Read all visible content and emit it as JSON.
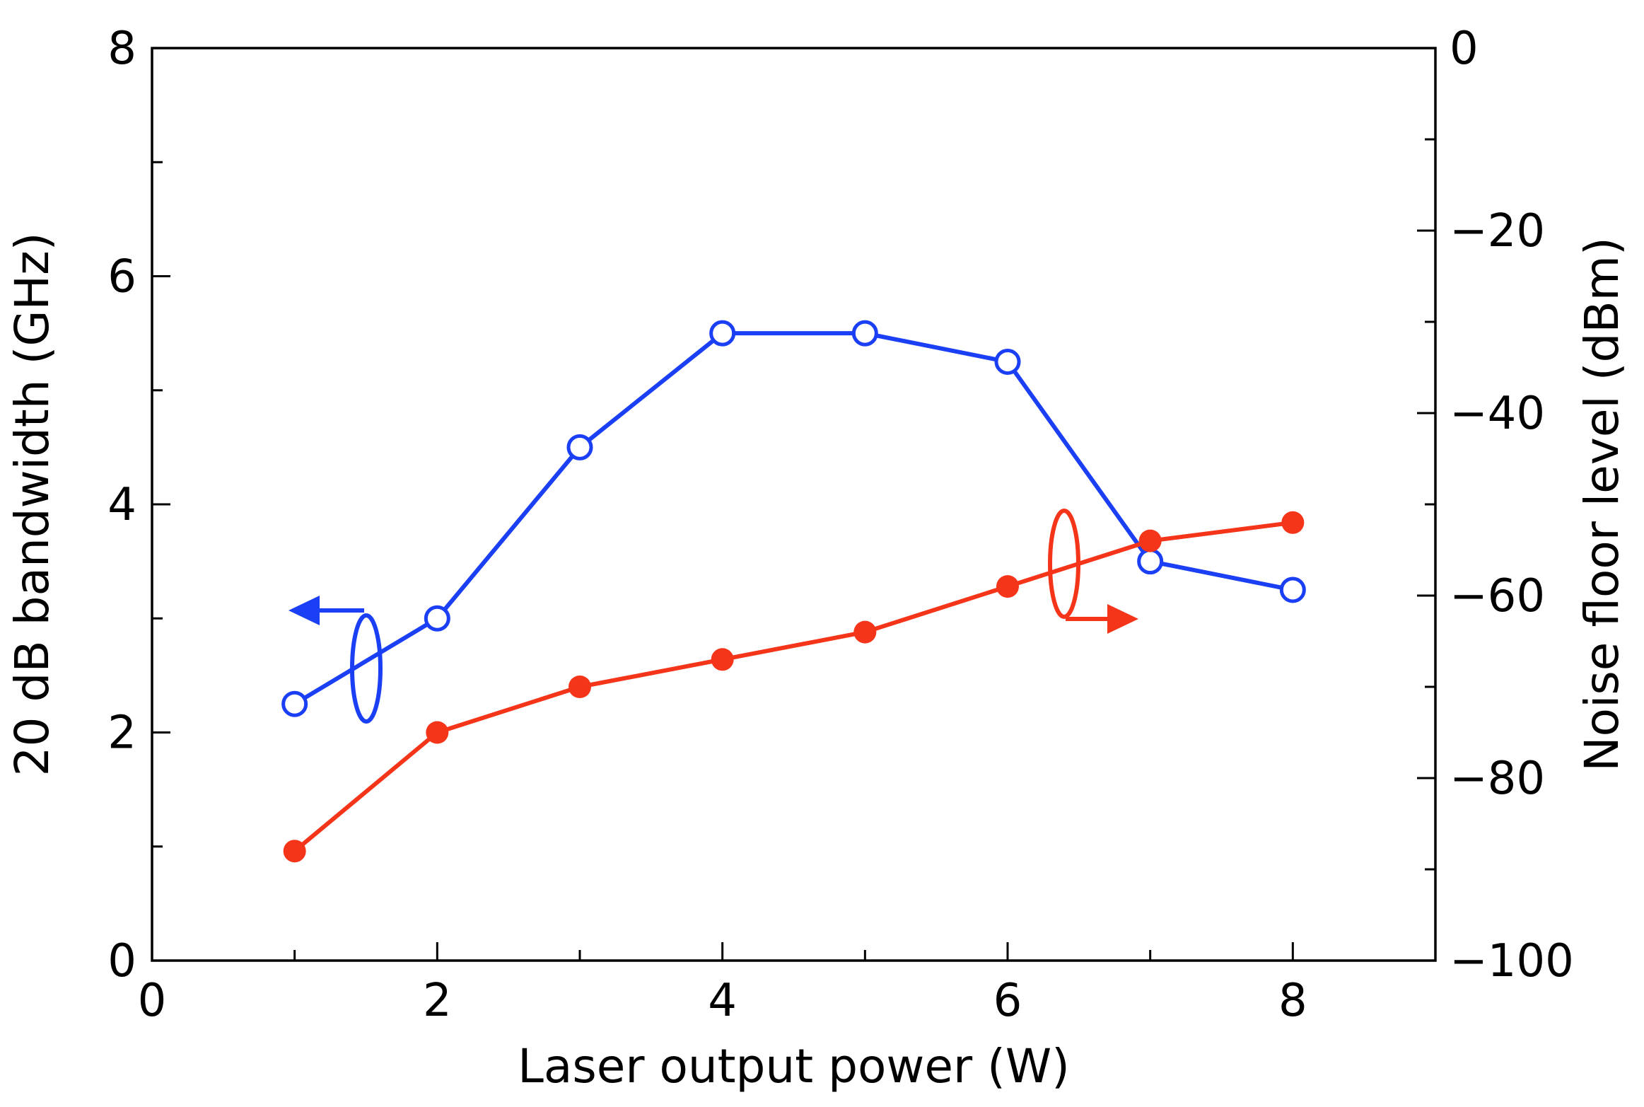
{
  "chart_data": {
    "type": "line",
    "title": "",
    "xlabel": "Laser output power (W)",
    "ylabel_left": "20 dB bandwidth (GHz)",
    "ylabel_right": "Noise floor level (dBm)",
    "xlim": [
      0,
      9
    ],
    "ylim_left": [
      0,
      8
    ],
    "ylim_right": [
      -100,
      0
    ],
    "x_ticks": [
      0,
      2,
      4,
      6,
      8
    ],
    "y_left_ticks": [
      0,
      2,
      4,
      6,
      8
    ],
    "y_right_ticks": [
      0,
      -20,
      -40,
      -60,
      -80,
      -100
    ],
    "x_tick_labels": [
      "0",
      "2",
      "4",
      "6",
      "8"
    ],
    "y_left_tick_labels": [
      "0",
      "2",
      "4",
      "6",
      "8"
    ],
    "y_right_tick_labels": [
      "0",
      "−20",
      "−40",
      "−60",
      "−80",
      "−100"
    ],
    "grid": false,
    "legend": "none",
    "series": [
      {
        "axis": "left",
        "marker": "open-circle",
        "color": "#1a3ff5",
        "x": [
          1,
          2,
          3,
          4,
          5,
          6,
          7,
          8
        ],
        "y": [
          2.25,
          3.0,
          4.5,
          5.5,
          5.5,
          5.25,
          3.5,
          3.25
        ]
      },
      {
        "axis": "right",
        "marker": "filled-circle",
        "color": "#f5351a",
        "x": [
          1,
          2,
          3,
          4,
          5,
          6,
          7,
          8
        ],
        "y": [
          -88,
          -75,
          -70,
          -67,
          -64,
          -59,
          -54,
          -52
        ]
      }
    ],
    "annotations": [
      {
        "kind": "axis-indicator-arrow",
        "series": 0,
        "points_to": "left",
        "color": "#1a3ff5"
      },
      {
        "kind": "axis-indicator-arrow",
        "series": 1,
        "points_to": "right",
        "color": "#f5351a"
      }
    ]
  }
}
